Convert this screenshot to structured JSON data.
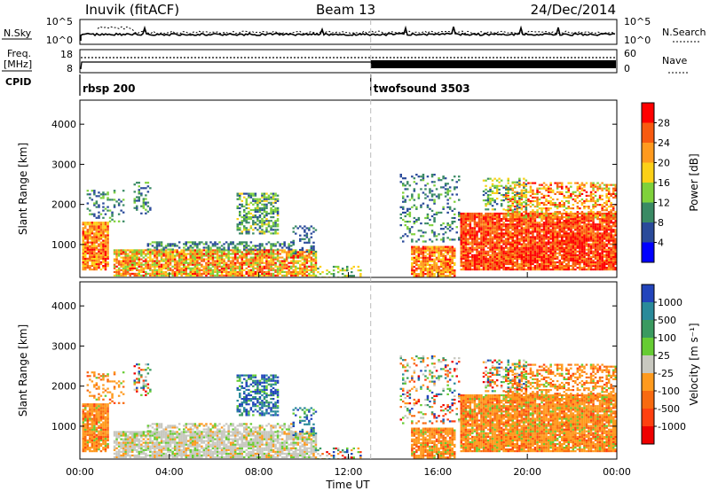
{
  "header": {
    "station_title": "Inuvik (fitACF)",
    "beam": "Beam 13",
    "date": "24/Dec/2014"
  },
  "strips": {
    "nsky_label": "N.Sky",
    "nsky_ticks": [
      "10^5",
      "10^0"
    ],
    "nsearch_label": "N.Search",
    "nsearch_ticks": [
      "10^5",
      "10^0"
    ],
    "freq_label_1": "Freq.",
    "freq_label_2": "[MHz]",
    "freq_ticks": [
      "18",
      "8"
    ],
    "nave_label": "Nave",
    "nave_ticks": [
      "60",
      "0"
    ],
    "cpid_label": "CPID",
    "cpid_segments": [
      {
        "name": "rbsp 200",
        "start_hour": 0,
        "end_hour": 13
      },
      {
        "name": "twofsound 3503",
        "start_hour": 13,
        "end_hour": 24
      }
    ]
  },
  "chart_data": [
    {
      "type": "heatmap",
      "panel": "power",
      "ylabel": "Slant Range [km]",
      "xlabel": "",
      "ylim": [
        180,
        4600
      ],
      "xlim_hours": [
        0,
        24
      ],
      "yticks": [
        "1000",
        "2000",
        "3000",
        "4000"
      ],
      "colorbar_label": "Power [dB]",
      "colorbar_ticks": [
        "28",
        "24",
        "20",
        "16",
        "12",
        "8",
        "4"
      ],
      "colorbar_colors": [
        "#ff0000",
        "#f85a10",
        "#ff9a1e",
        "#fcd017",
        "#7fd13b",
        "#3a8a64",
        "#2a4a9a",
        "#0000ff"
      ],
      "colorbar_range": [
        0,
        32
      ],
      "marker_hour": 13
    },
    {
      "type": "heatmap",
      "panel": "velocity",
      "ylabel": "Slant Range [km]",
      "xlabel": "Time UT",
      "ylim": [
        180,
        4600
      ],
      "xlim_hours": [
        0,
        24
      ],
      "yticks": [
        "1000",
        "2000",
        "3000",
        "4000"
      ],
      "xticks": [
        "00:00",
        "04:00",
        "08:00",
        "12:00",
        "16:00",
        "20:00",
        "00:00"
      ],
      "colorbar_label": "Velocity [m s⁻¹]",
      "colorbar_ticks": [
        "1000",
        "500",
        "100",
        "25",
        "-25",
        "-100",
        "-500",
        "-1000"
      ],
      "colorbar_colors": [
        "#2244bb",
        "#2a8a9a",
        "#3a9a60",
        "#66cc33",
        "#c8c8c0",
        "#ff9a1e",
        "#f86a10",
        "#ff4010",
        "#ee0000"
      ],
      "marker_hour": 13
    }
  ]
}
